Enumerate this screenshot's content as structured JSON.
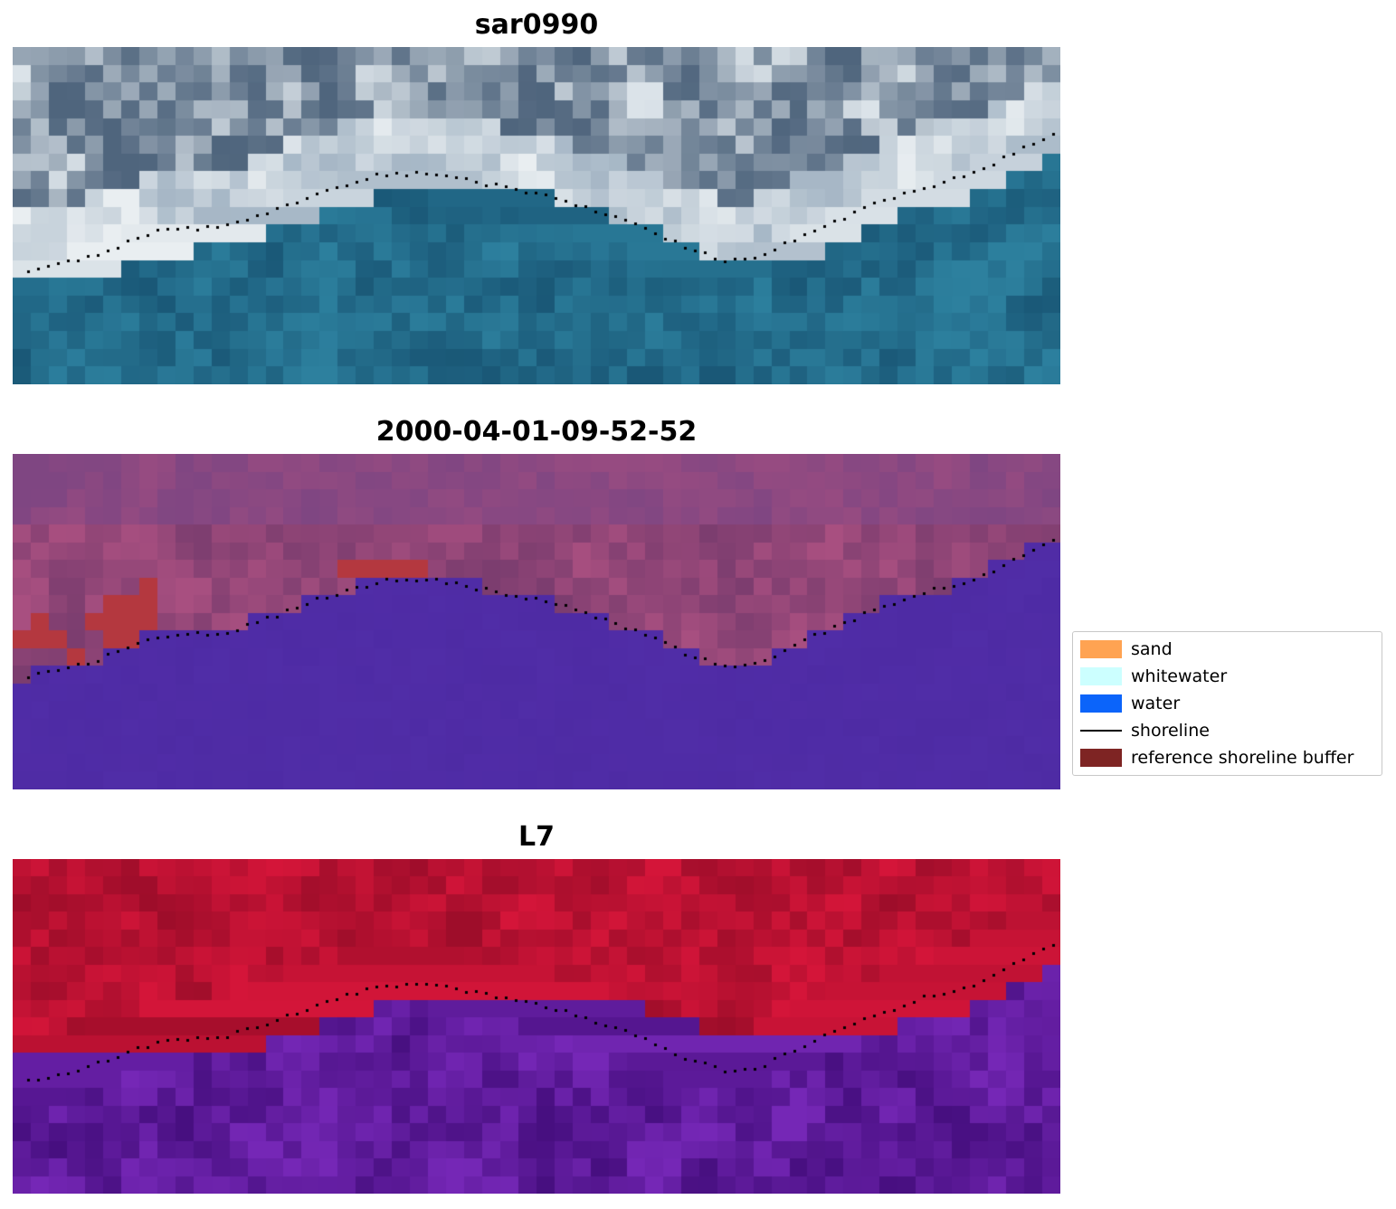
{
  "figure": {
    "background": "#ffffff"
  },
  "panels": [
    {
      "title": "sar0990",
      "colors": {
        "water_dark": "#16506f",
        "water_light": "#2f85a3",
        "surf": "#e9eef1",
        "cloud_mid": "#8aa0b4",
        "cloud_dark": "#4f657d",
        "cloud_white": "#dbe3e9"
      }
    },
    {
      "title": "2000-04-01-09-52-52",
      "colors": {
        "water": "#4e2ba4",
        "water_hi": "#5a35b5",
        "land_dark": "#7c3d6f",
        "land_light": "#a84f80",
        "top": "#7f4682",
        "buffer": "#b4383f"
      }
    },
    {
      "title": "L7",
      "colors": {
        "red_dark": "#9e0d2a",
        "red_bright": "#d41539",
        "transition": "#c66a88",
        "purple_dark": "#470f80",
        "purple_light": "#7527b6"
      }
    }
  ],
  "legend": {
    "items": [
      {
        "label": "sand",
        "color": "#ffa352",
        "type": "patch"
      },
      {
        "label": "whitewater",
        "color": "#ccffff",
        "type": "patch"
      },
      {
        "label": "water",
        "color": "#0b64fa",
        "type": "patch"
      },
      {
        "label": "shoreline",
        "color": "#000000",
        "type": "line"
      },
      {
        "label": "reference shoreline buffer",
        "color": "#7e2423",
        "type": "patch"
      }
    ]
  },
  "chart_data": {
    "type": "heatmap",
    "panel_titles": [
      "sar0990",
      "2000-04-01-09-52-52",
      "L7"
    ],
    "legend_entries": [
      "sand",
      "whitewater",
      "water",
      "shoreline",
      "reference shoreline buffer"
    ],
    "legend_position": "center right",
    "description": "Three co-registered pixelated coastal image tiles with a dotted black shoreline overlay: top an RGB satellite tile (blue water, white surf/clouds), middle a classified tile (purple water below shoreline, pink above, dark red reference shoreline buffer patches), bottom a false-color L7 tile (crimson above shoreline, purple water below).",
    "shoreline_normalized_xy": [
      [
        0,
        0.67
      ],
      [
        0.07,
        0.62
      ],
      [
        0.14,
        0.54
      ],
      [
        0.2,
        0.53
      ],
      [
        0.25,
        0.48
      ],
      [
        0.29,
        0.43
      ],
      [
        0.35,
        0.375
      ],
      [
        0.4,
        0.37
      ],
      [
        0.45,
        0.4
      ],
      [
        0.52,
        0.445
      ],
      [
        0.59,
        0.52
      ],
      [
        0.64,
        0.59
      ],
      [
        0.68,
        0.63
      ],
      [
        0.71,
        0.62
      ],
      [
        0.76,
        0.545
      ],
      [
        0.82,
        0.465
      ],
      [
        0.87,
        0.41
      ],
      [
        0.92,
        0.37
      ],
      [
        0.96,
        0.3
      ],
      [
        1,
        0.24
      ]
    ]
  }
}
